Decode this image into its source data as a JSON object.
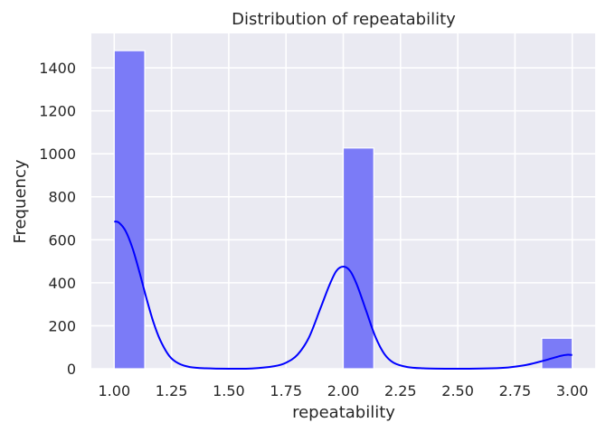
{
  "chart_data": {
    "type": "bar",
    "title": "Distribution of repeatability",
    "xlabel": "repeatability",
    "ylabel": "Frequency",
    "xlim": [
      0.9,
      3.1
    ],
    "ylim": [
      0,
      1560
    ],
    "x_ticks": [
      "1.00",
      "1.25",
      "1.50",
      "1.75",
      "2.00",
      "2.25",
      "2.50",
      "2.75",
      "3.00"
    ],
    "y_ticks": [
      "0",
      "200",
      "400",
      "600",
      "800",
      "1000",
      "1200",
      "1400"
    ],
    "grid": true,
    "bar_color": "#7b7bf7",
    "kde_color": "#0000ff",
    "background_color": "#eaeaf2",
    "bars": [
      {
        "x_start": 1.0,
        "x_end": 1.1333,
        "value": 1480
      },
      {
        "x_start": 1.8667,
        "x_end": 2.0,
        "value": 0
      },
      {
        "x_start": 2.0,
        "x_end": 2.1333,
        "value": 1027
      },
      {
        "x_start": 2.8667,
        "x_end": 3.0,
        "value": 142
      }
    ],
    "kde": {
      "x": [
        1.0,
        1.02,
        1.05,
        1.08,
        1.11,
        1.14,
        1.17,
        1.2,
        1.24,
        1.28,
        1.33,
        1.4,
        1.5,
        1.6,
        1.7,
        1.75,
        1.8,
        1.85,
        1.9,
        1.94,
        1.97,
        2.0,
        2.03,
        2.06,
        2.1,
        2.14,
        2.18,
        2.22,
        2.28,
        2.35,
        2.45,
        2.55,
        2.65,
        2.72,
        2.78,
        2.83,
        2.87,
        2.91,
        2.95,
        2.98,
        3.0
      ],
      "y": [
        685,
        680,
        640,
        560,
        450,
        330,
        220,
        135,
        60,
        25,
        8,
        2,
        0,
        1,
        12,
        28,
        65,
        145,
        280,
        390,
        455,
        475,
        455,
        390,
        270,
        150,
        68,
        28,
        8,
        2,
        0,
        0,
        2,
        6,
        14,
        25,
        36,
        48,
        60,
        65,
        64
      ]
    }
  }
}
